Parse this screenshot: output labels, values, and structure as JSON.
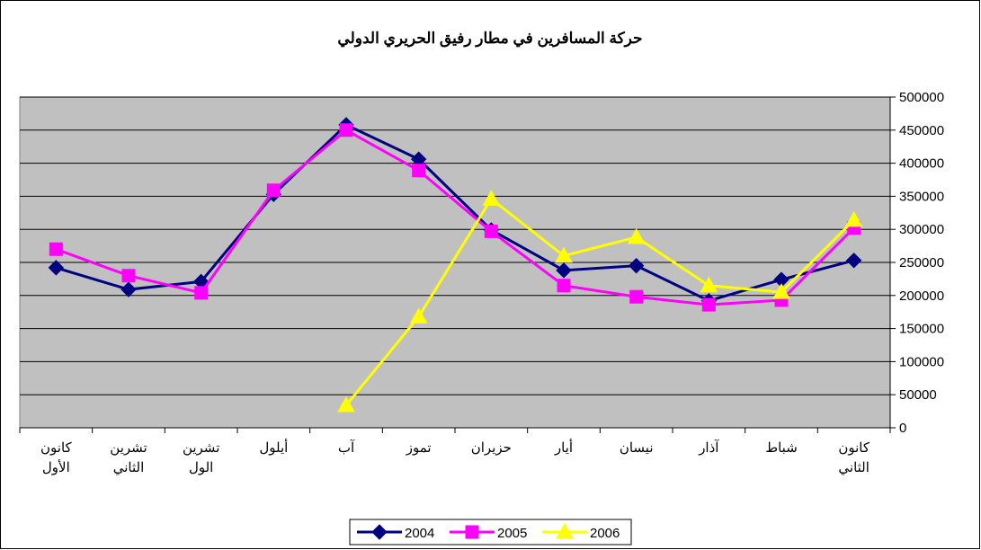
{
  "chart_data": {
    "type": "line",
    "title": "حركة المسافرين في مطار رفيق الحريري الدولي",
    "categories": [
      "كانون الأول",
      "تشرين الثاني",
      "تشرين الول",
      "أيلول",
      "آب",
      "تموز",
      "حزيران",
      "أيار",
      "نيسان",
      "آذار",
      "شباط",
      "كانون الثاني"
    ],
    "series": [
      {
        "name": "2004",
        "color": "#000080",
        "marker": "diamond",
        "values": [
          242000,
          209000,
          221000,
          353000,
          458000,
          406000,
          299000,
          238000,
          245000,
          192000,
          224000,
          253000
        ]
      },
      {
        "name": "2005",
        "color": "#ff00ff",
        "marker": "square",
        "values": [
          270000,
          230000,
          204000,
          359000,
          450000,
          389000,
          297000,
          215000,
          198000,
          186000,
          193000,
          302000
        ]
      },
      {
        "name": "2006",
        "color": "#ffff00",
        "marker": "triangle",
        "values": [
          null,
          null,
          null,
          null,
          34000,
          168000,
          346000,
          260000,
          288000,
          215000,
          205000,
          314000
        ]
      }
    ],
    "ylim": [
      0,
      500000
    ],
    "yticks": [
      0,
      50000,
      100000,
      150000,
      200000,
      250000,
      300000,
      350000,
      400000,
      450000,
      500000
    ],
    "grid": true,
    "y_axis_side": "right",
    "legend": "bottom",
    "plot_background": "#c0c0c0"
  }
}
